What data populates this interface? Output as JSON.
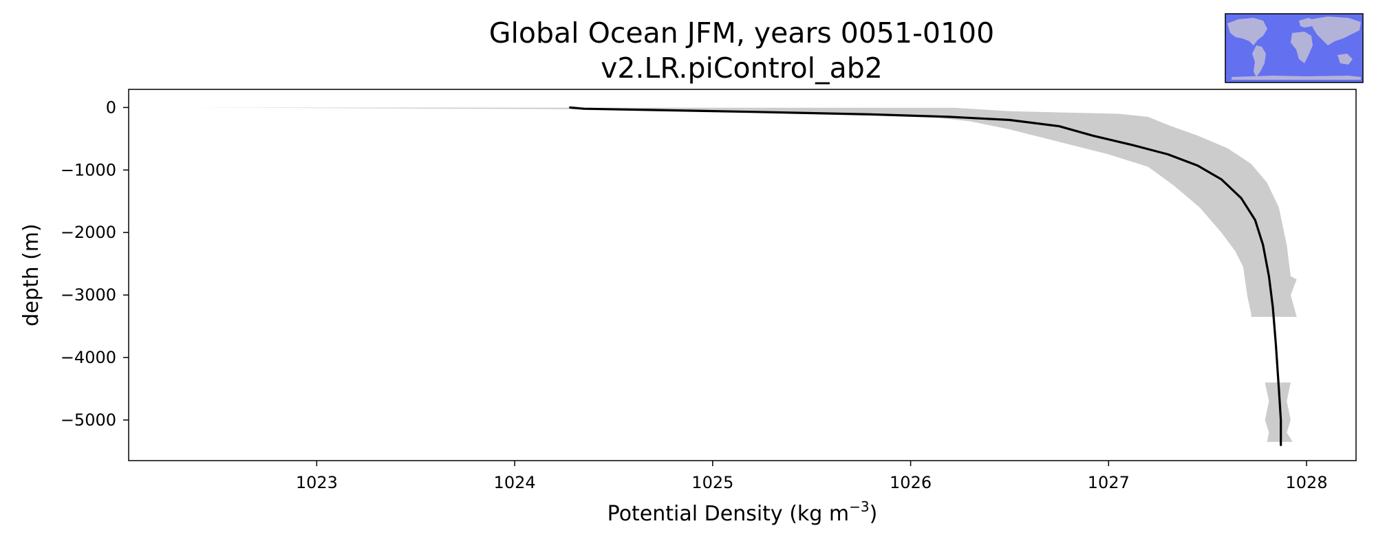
{
  "chart_data": {
    "type": "line",
    "title": "Global Ocean JFM, years 0051-0100",
    "subtitle": "v2.LR.piControl_ab2",
    "xlabel_main": "Potential Density (kg m",
    "xlabel_sup": "−3",
    "xlabel_close": ")",
    "ylabel": "depth (m)",
    "xlim": [
      1022.05,
      1028.25
    ],
    "ylim": [
      -5650,
      290
    ],
    "grid": false,
    "x_ticks": [
      {
        "value": 1023,
        "label": "1023"
      },
      {
        "value": 1024,
        "label": "1024"
      },
      {
        "value": 1025,
        "label": "1025"
      },
      {
        "value": 1026,
        "label": "1026"
      },
      {
        "value": 1027,
        "label": "1027"
      },
      {
        "value": 1028,
        "label": "1028"
      }
    ],
    "y_ticks": [
      {
        "value": 0,
        "label": "0"
      },
      {
        "value": -1000,
        "label": "−1000"
      },
      {
        "value": -2000,
        "label": "−2000"
      },
      {
        "value": -3000,
        "label": "−3000"
      },
      {
        "value": -4000,
        "label": "−4000"
      },
      {
        "value": -5000,
        "label": "−5000"
      }
    ],
    "series": [
      {
        "color": "#000000",
        "points": [
          [
            1024.28,
            0
          ],
          [
            1024.35,
            -20
          ],
          [
            1024.7,
            -40
          ],
          [
            1025.2,
            -70
          ],
          [
            1025.8,
            -110
          ],
          [
            1026.2,
            -150
          ],
          [
            1026.5,
            -200
          ],
          [
            1026.75,
            -300
          ],
          [
            1026.92,
            -450
          ],
          [
            1027.12,
            -600
          ],
          [
            1027.3,
            -750
          ],
          [
            1027.45,
            -930
          ],
          [
            1027.57,
            -1150
          ],
          [
            1027.67,
            -1450
          ],
          [
            1027.74,
            -1800
          ],
          [
            1027.78,
            -2200
          ],
          [
            1027.81,
            -2700
          ],
          [
            1027.83,
            -3200
          ],
          [
            1027.845,
            -3800
          ],
          [
            1027.86,
            -4500
          ],
          [
            1027.87,
            -5000
          ],
          [
            1027.87,
            -5400
          ]
        ]
      }
    ],
    "band": {
      "color": "#cccccc",
      "segments": [
        {
          "lower": [
            [
              1022.35,
              0
            ],
            [
              1024.5,
              -30
            ],
            [
              1025.3,
              -60
            ],
            [
              1025.8,
              -100
            ],
            [
              1026.1,
              -150
            ],
            [
              1026.3,
              -220
            ],
            [
              1026.5,
              -350
            ],
            [
              1026.75,
              -550
            ],
            [
              1027.0,
              -750
            ],
            [
              1027.2,
              -950
            ],
            [
              1027.33,
              -1250
            ],
            [
              1027.46,
              -1600
            ],
            [
              1027.57,
              -2000
            ],
            [
              1027.64,
              -2300
            ],
            [
              1027.68,
              -2550
            ],
            [
              1027.7,
              -3000
            ],
            [
              1027.72,
              -3300
            ],
            [
              1027.72,
              -3350
            ]
          ],
          "upper": [
            [
              1022.35,
              0
            ],
            [
              1026.22,
              -5
            ],
            [
              1026.5,
              -60
            ],
            [
              1027.05,
              -100
            ],
            [
              1027.2,
              -150
            ],
            [
              1027.3,
              -280
            ],
            [
              1027.45,
              -450
            ],
            [
              1027.6,
              -650
            ],
            [
              1027.72,
              -900
            ],
            [
              1027.8,
              -1200
            ],
            [
              1027.86,
              -1600
            ],
            [
              1027.9,
              -2200
            ],
            [
              1027.92,
              -2700
            ],
            [
              1027.95,
              -2750
            ],
            [
              1027.92,
              -3000
            ],
            [
              1027.95,
              -3350
            ]
          ]
        },
        {
          "lower": [
            [
              1027.79,
              -4400
            ],
            [
              1027.81,
              -4700
            ],
            [
              1027.79,
              -5000
            ],
            [
              1027.81,
              -5200
            ],
            [
              1027.8,
              -5350
            ]
          ],
          "upper": [
            [
              1027.92,
              -4400
            ],
            [
              1027.9,
              -4700
            ],
            [
              1027.92,
              -5000
            ],
            [
              1027.9,
              -5200
            ],
            [
              1027.93,
              -5350
            ]
          ]
        }
      ]
    },
    "inset_map": {
      "ocean_color": "#6370f0",
      "land_color": "#b3b3d9",
      "border_color": "#000000"
    }
  }
}
